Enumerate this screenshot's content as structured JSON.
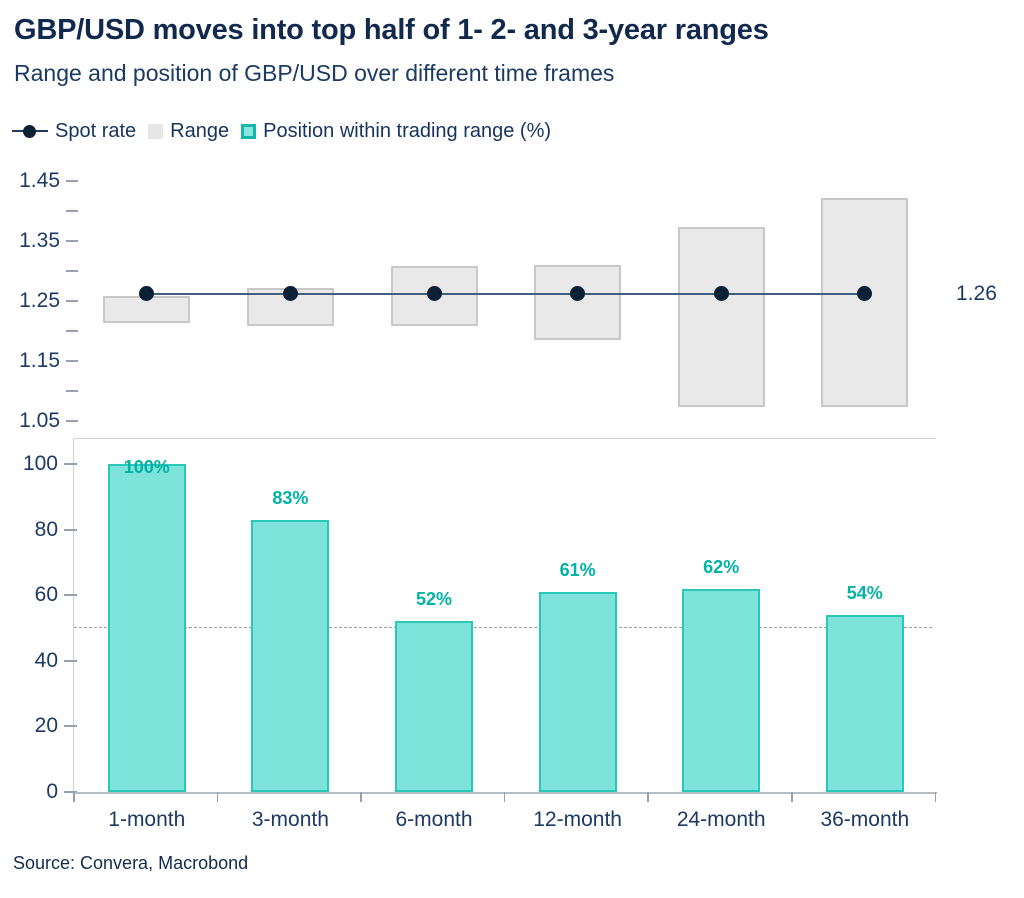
{
  "header": {
    "title": "GBP/USD moves into top half of 1- 2- and 3-year ranges",
    "subtitle": "Range and position of GBP/USD over different time frames"
  },
  "legend": {
    "items": [
      {
        "label": "Spot rate",
        "marker": "spot-line-dot-icon"
      },
      {
        "label": "Range",
        "marker": "range-square-icon"
      },
      {
        "label": "Position within trading range (%)",
        "marker": "position-square-icon"
      }
    ]
  },
  "chart_data": [
    {
      "type": "range-bar",
      "panel": "top",
      "categories": [
        "1-month",
        "3-month",
        "6-month",
        "12-month",
        "24-month",
        "36-month"
      ],
      "series": [
        {
          "name": "Range",
          "low": [
            1.213,
            1.208,
            1.208,
            1.185,
            1.074,
            1.074
          ],
          "high": [
            1.259,
            1.272,
            1.309,
            1.31,
            1.373,
            1.421
          ]
        },
        {
          "name": "Spot rate",
          "value": 1.262,
          "display_label": "1.26"
        }
      ],
      "ylim": [
        1.02,
        1.47
      ],
      "yticks": [
        1.45,
        1.35,
        1.25,
        1.15,
        1.05
      ],
      "minor_yticks": [
        1.4,
        1.3,
        1.2,
        1.1
      ],
      "grid": false,
      "legend_position": "top"
    },
    {
      "type": "bar",
      "panel": "bottom",
      "categories": [
        "1-month",
        "3-month",
        "6-month",
        "12-month",
        "24-month",
        "36-month"
      ],
      "values": [
        100,
        83,
        52,
        61,
        62,
        54
      ],
      "labels": [
        "100%",
        "83%",
        "52%",
        "61%",
        "62%",
        "54%"
      ],
      "ylim": [
        0,
        108
      ],
      "yticks": [
        100,
        80,
        60,
        40,
        20,
        0
      ],
      "reference_line": 50,
      "grid": false,
      "xlabel": "",
      "ylabel": ""
    }
  ],
  "footer": {
    "source": "Source: Convera, Macrobond"
  },
  "colors": {
    "title_navy": "#12294e",
    "axis_text": "#1c3a63",
    "spot_line": "#41607f",
    "spot_dot": "#0c2036",
    "range_fill": "#e9e9e9",
    "range_border": "#c8c8c8",
    "position_fill": "#7ee3da",
    "position_border": "#2ac8b9",
    "position_label": "#00b3a4",
    "reference_dashed": "#999fa5",
    "panel_line": "#cdd2d6",
    "axis_line": "#b6bdc4",
    "tick": "#97a1ab"
  }
}
